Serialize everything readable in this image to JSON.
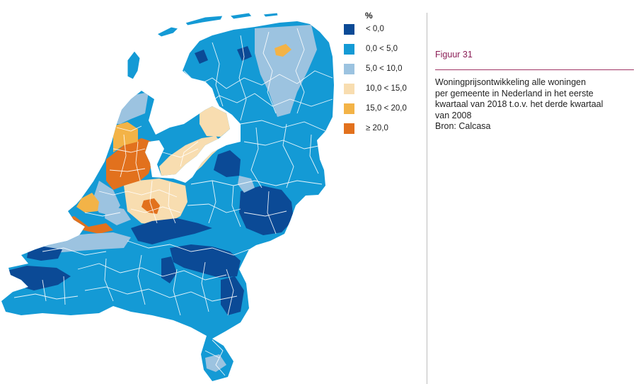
{
  "colors": {
    "c_neg": "#0b4a96",
    "c_0_5": "#149ad5",
    "c_5_10": "#9cc3e0",
    "c_10_15": "#f8ddb0",
    "c_15_20": "#f3b347",
    "c_20": "#e2711d",
    "water": "#ffffff",
    "border": "#ffffff",
    "figure_label": "#8b1e56",
    "rule": "#a03565"
  },
  "legend": {
    "title": "%",
    "items": [
      {
        "label": "< 0,0",
        "color": "#0b4a96"
      },
      {
        "label": "0,0 < 5,0",
        "color": "#149ad5"
      },
      {
        "label": "5,0 < 10,0",
        "color": "#9cc3e0"
      },
      {
        "label": "10,0 < 15,0",
        "color": "#f8ddb0"
      },
      {
        "label": "15,0 < 20,0",
        "color": "#f3b347"
      },
      {
        "label": "≥ 20,0",
        "color": "#e2711d"
      }
    ]
  },
  "figure": {
    "label": "Figuur 31",
    "caption_lines": [
      "Woningprijsontwikkeling alle woningen",
      "per gemeente in Nederland in het eerste",
      "kwartaal van 2018 t.o.v. het derde kwartaal",
      "van 2008",
      "Bron: Calcasa"
    ]
  }
}
